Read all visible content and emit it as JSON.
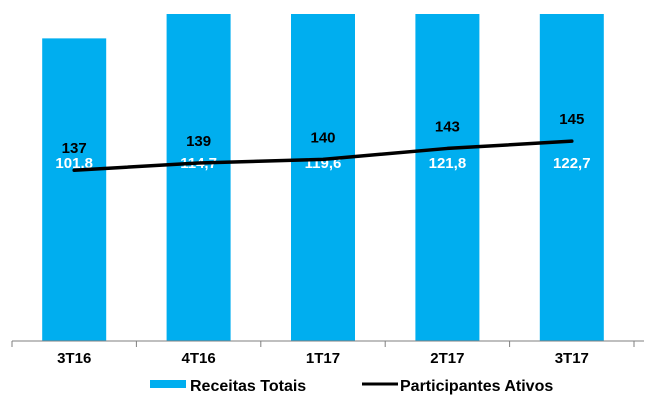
{
  "chart_data": {
    "type": "bar",
    "categories": [
      "3T16",
      "4T16",
      "1T17",
      "2T17",
      "3T17"
    ],
    "series": [
      {
        "name": "Receitas Totais",
        "type": "bar",
        "values": [
          101.8,
          114.7,
          119.6,
          121.8,
          122.7
        ],
        "labels": [
          "101,8",
          "114,7",
          "119,6",
          "121,8",
          "122,7"
        ],
        "color": "#00AEEF"
      },
      {
        "name": "Participantes Ativos",
        "type": "line",
        "values": [
          137,
          139,
          140,
          143,
          145
        ],
        "labels": [
          "137",
          "139",
          "140",
          "143",
          "145"
        ],
        "color": "#000000"
      }
    ],
    "grid": false,
    "legend_position": "bottom",
    "bar_ylim": [
      0,
      110
    ],
    "line_ylim": [
      90,
      180
    ]
  }
}
